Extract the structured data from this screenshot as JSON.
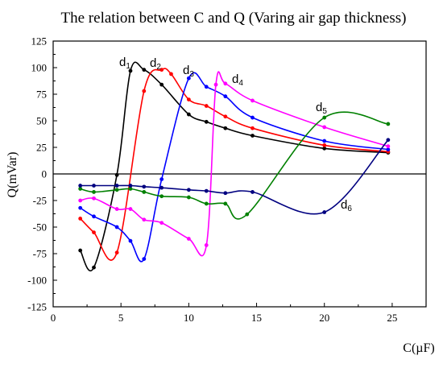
{
  "chart_data": {
    "type": "line",
    "title": "The relation between C and Q (Varing air gap thickness)",
    "xlabel": "C(µF)",
    "ylabel": "Q(mVar)",
    "xlim": [
      0,
      27.5
    ],
    "ylim": [
      -125,
      125
    ],
    "x_ticks": [
      "0",
      "5",
      "10",
      "15",
      "20",
      "25"
    ],
    "y_ticks": [
      "125",
      "100",
      "75",
      "50",
      "25",
      "0",
      "-25",
      "-50",
      "-75",
      "-100",
      "-125"
    ],
    "grid": false,
    "zero_line": true,
    "series": [
      {
        "name": "d1",
        "label_main": "d",
        "label_sub": "1",
        "color": "#000000",
        "x": [
          2.0,
          3.0,
          4.7,
          5.7,
          6.7,
          8.0,
          10.0,
          11.3,
          12.7,
          14.7,
          20.0,
          24.7
        ],
        "y": [
          -72,
          -88,
          -1,
          97,
          98,
          84,
          56,
          49,
          43,
          36,
          24,
          20
        ]
      },
      {
        "name": "d2",
        "label_main": "d",
        "label_sub": "2",
        "color": "#ff0000",
        "x": [
          2.0,
          3.0,
          4.7,
          6.7,
          8.0,
          8.7,
          10.0,
          11.3,
          12.7,
          14.7,
          20.0,
          24.7
        ],
        "y": [
          -42,
          -55,
          -74,
          78,
          98,
          94,
          70,
          64,
          54,
          43,
          27,
          21
        ]
      },
      {
        "name": "d3",
        "label_main": "d",
        "label_sub": "3",
        "color": "#0000ff",
        "x": [
          2.0,
          3.0,
          4.7,
          5.7,
          6.7,
          8.0,
          10.0,
          11.3,
          12.7,
          14.7,
          20.0,
          24.7
        ],
        "y": [
          -32,
          -40,
          -50,
          -63,
          -80,
          -5,
          90,
          82,
          73,
          53,
          31,
          23
        ]
      },
      {
        "name": "d4",
        "label_main": "d",
        "label_sub": "4",
        "color": "#ff00ff",
        "x": [
          2.0,
          3.0,
          4.7,
          5.7,
          6.7,
          8.0,
          10.0,
          11.3,
          12.0,
          12.7,
          14.7,
          20.0,
          24.7
        ],
        "y": [
          -25,
          -23,
          -33,
          -33,
          -43,
          -46,
          -61,
          -67,
          84,
          85,
          69,
          44,
          26
        ]
      },
      {
        "name": "d5",
        "label_main": "d",
        "label_sub": "5",
        "color": "#008000",
        "x": [
          2.0,
          3.0,
          4.7,
          5.7,
          6.7,
          8.0,
          10.0,
          11.3,
          12.7,
          14.3,
          20.0,
          24.7
        ],
        "y": [
          -14,
          -17,
          -15,
          -14,
          -17,
          -21,
          -22,
          -28,
          -28,
          -38,
          53,
          47
        ]
      },
      {
        "name": "d6",
        "label_main": "d",
        "label_sub": "6",
        "color": "#000080",
        "x": [
          2.0,
          3.0,
          4.7,
          5.7,
          6.7,
          8.0,
          10.0,
          11.3,
          12.7,
          14.7,
          20.0,
          24.7
        ],
        "y": [
          -11,
          -11,
          -11,
          -11,
          -12,
          -13,
          -15,
          -16,
          -18,
          -17,
          -36,
          32
        ]
      }
    ]
  }
}
